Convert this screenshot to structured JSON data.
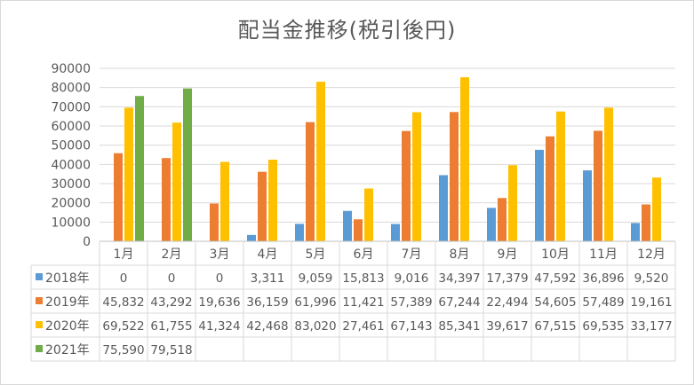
{
  "chart_data": {
    "type": "bar",
    "title": "配当金推移(税引後円)",
    "xlabel": "",
    "ylabel": "",
    "ylim": [
      0,
      90000
    ],
    "yticks": [
      0,
      10000,
      20000,
      30000,
      40000,
      50000,
      60000,
      70000,
      80000,
      90000
    ],
    "grid": true,
    "legend": "data-table",
    "categories": [
      "1月",
      "2月",
      "3月",
      "4月",
      "5月",
      "6月",
      "7月",
      "8月",
      "9月",
      "10月",
      "11月",
      "12月"
    ],
    "series": [
      {
        "name": "2018年",
        "color": "#5b9bd5",
        "values": [
          0,
          0,
          0,
          3311,
          9059,
          15813,
          9016,
          34397,
          17379,
          47592,
          36896,
          9520
        ],
        "labels": [
          "0",
          "0",
          "0",
          "3,311",
          "9,059",
          "15,813",
          "9,016",
          "34,397",
          "17,379",
          "47,592",
          "36,896",
          "9,520"
        ]
      },
      {
        "name": "2019年",
        "color": "#ed7d31",
        "values": [
          45832,
          43292,
          19636,
          36159,
          61996,
          11421,
          57389,
          67244,
          22494,
          54605,
          57489,
          19161
        ],
        "labels": [
          "45,832",
          "43,292",
          "19,636",
          "36,159",
          "61,996",
          "11,421",
          "57,389",
          "67,244",
          "22,494",
          "54,605",
          "57,489",
          "19,161"
        ]
      },
      {
        "name": "2020年",
        "color": "#ffc000",
        "values": [
          69522,
          61755,
          41324,
          42468,
          83020,
          27461,
          67143,
          85341,
          39617,
          67515,
          69535,
          33177
        ],
        "labels": [
          "69,522",
          "61,755",
          "41,324",
          "42,468",
          "83,020",
          "27,461",
          "67,143",
          "85,341",
          "39,617",
          "67,515",
          "69,535",
          "33,177"
        ]
      },
      {
        "name": "2021年",
        "color": "#70ad47",
        "values": [
          75590,
          79518,
          null,
          null,
          null,
          null,
          null,
          null,
          null,
          null,
          null,
          null
        ],
        "labels": [
          "75,590",
          "79,518",
          "",
          "",
          "",
          "",
          "",
          "",
          "",
          "",
          "",
          ""
        ]
      }
    ]
  }
}
